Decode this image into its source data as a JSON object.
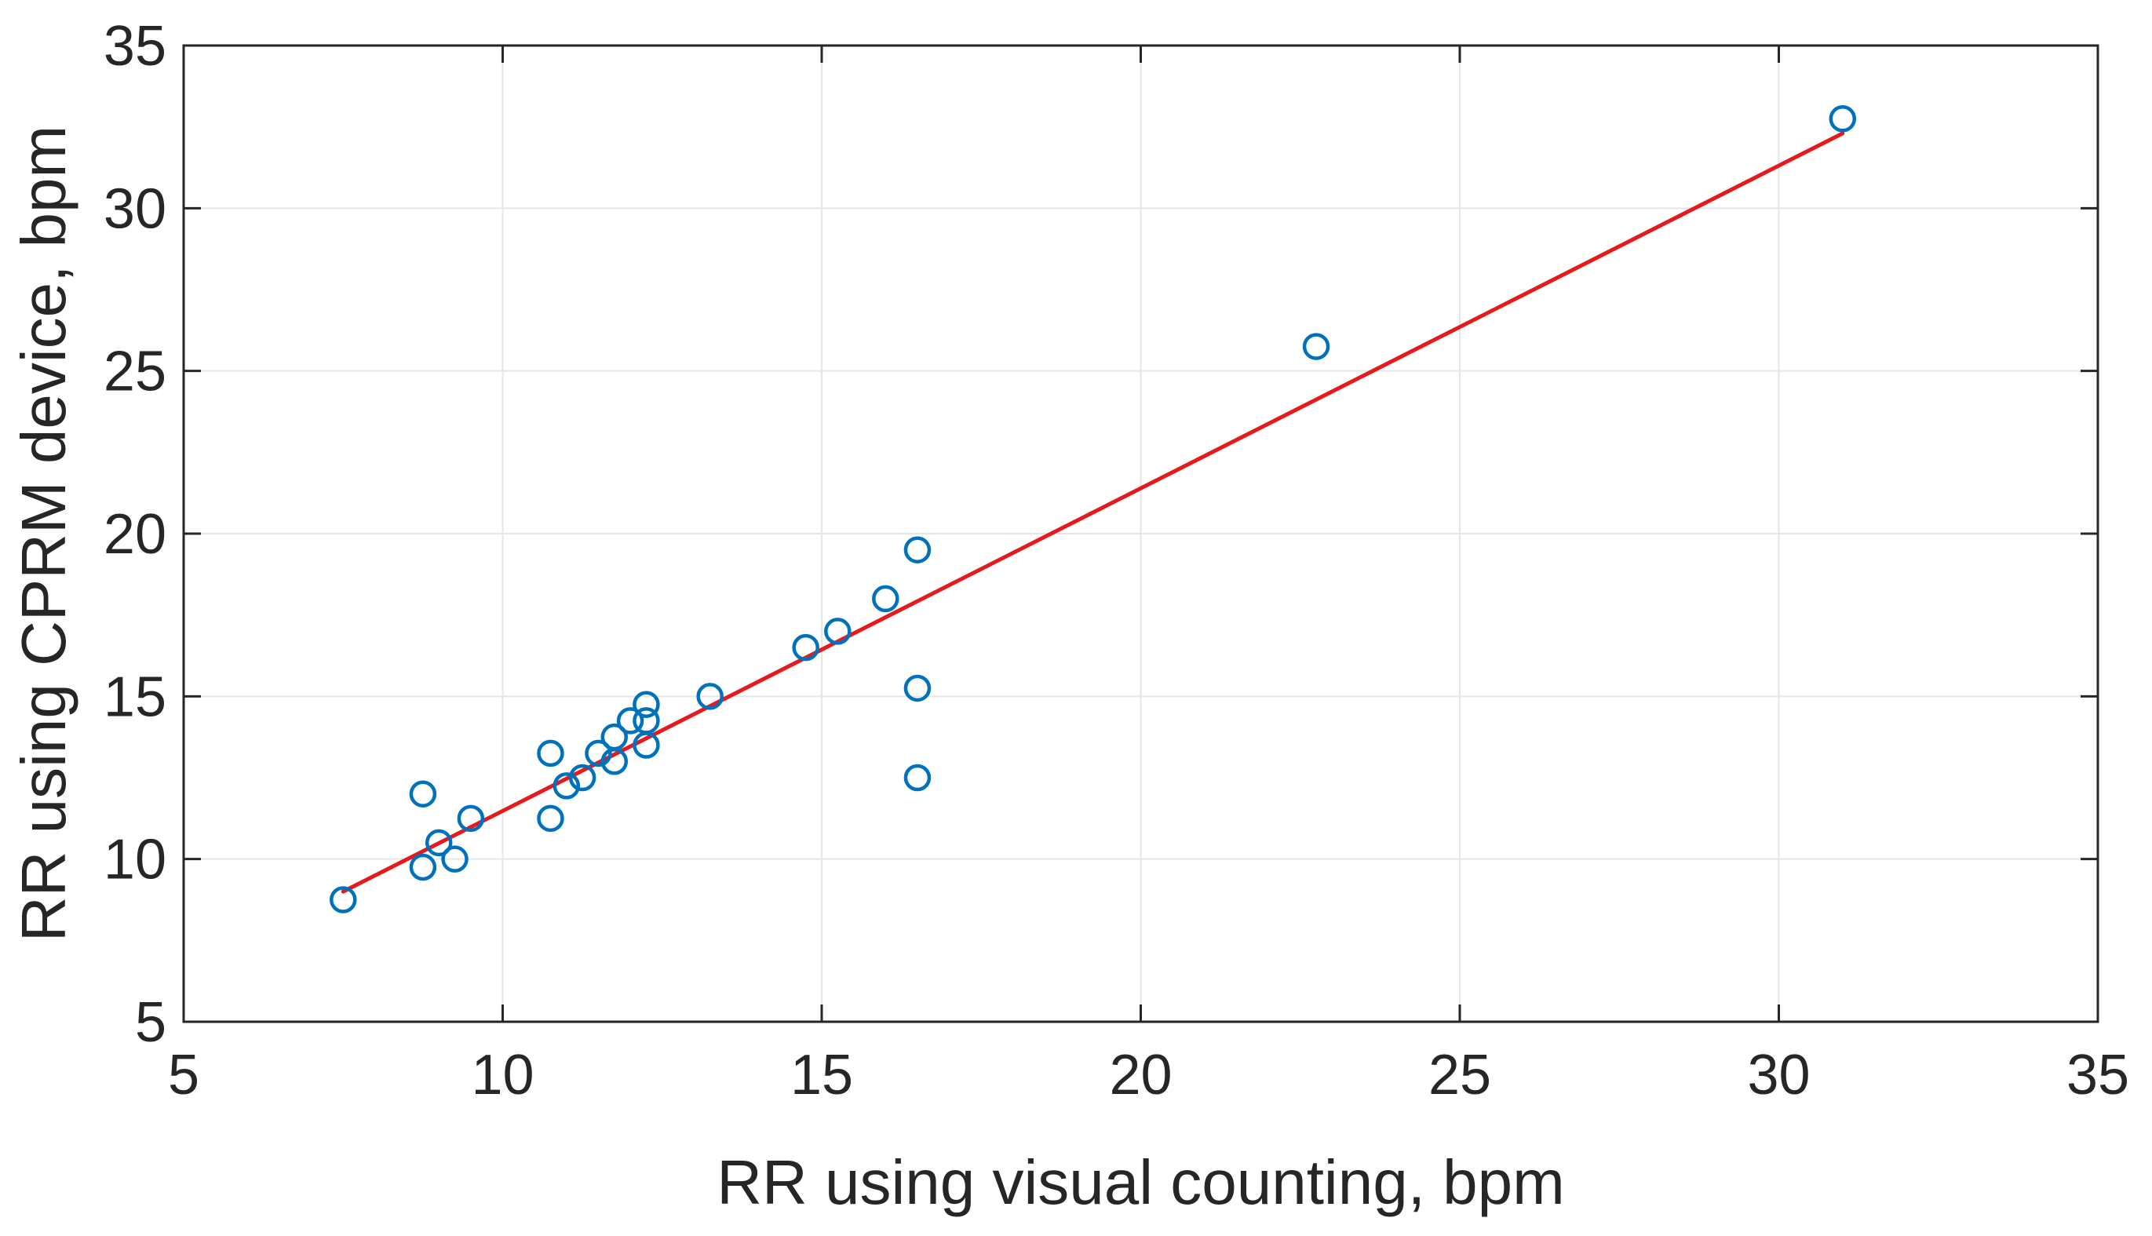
{
  "chart_data": {
    "type": "scatter",
    "title": "",
    "xlabel": "RR using visual counting, bpm",
    "ylabel": "RR using CPRM device, bpm",
    "xlim": [
      5,
      35
    ],
    "ylim": [
      5,
      35
    ],
    "xticks": [
      5,
      10,
      15,
      20,
      25,
      30,
      35
    ],
    "yticks": [
      5,
      10,
      15,
      20,
      25,
      30,
      35
    ],
    "grid": true,
    "series": [
      {
        "type": "scatter",
        "marker": "circle-open",
        "color": "#0072BD",
        "points": [
          {
            "x": 7.5,
            "y": 8.75
          },
          {
            "x": 8.75,
            "y": 9.75
          },
          {
            "x": 8.75,
            "y": 12.0
          },
          {
            "x": 9.0,
            "y": 10.5
          },
          {
            "x": 9.25,
            "y": 10.0
          },
          {
            "x": 9.5,
            "y": 11.25
          },
          {
            "x": 10.75,
            "y": 11.25
          },
          {
            "x": 10.75,
            "y": 13.25
          },
          {
            "x": 11.0,
            "y": 12.25
          },
          {
            "x": 11.25,
            "y": 12.5
          },
          {
            "x": 11.5,
            "y": 13.25
          },
          {
            "x": 11.75,
            "y": 13.0
          },
          {
            "x": 11.75,
            "y": 13.75
          },
          {
            "x": 12.0,
            "y": 14.25
          },
          {
            "x": 12.25,
            "y": 13.5
          },
          {
            "x": 12.25,
            "y": 14.25
          },
          {
            "x": 12.25,
            "y": 14.75
          },
          {
            "x": 13.25,
            "y": 15.0
          },
          {
            "x": 14.75,
            "y": 16.5
          },
          {
            "x": 15.25,
            "y": 17.0
          },
          {
            "x": 16.0,
            "y": 18.0
          },
          {
            "x": 16.5,
            "y": 19.5
          },
          {
            "x": 16.5,
            "y": 15.25
          },
          {
            "x": 16.5,
            "y": 12.5
          },
          {
            "x": 22.75,
            "y": 25.75
          },
          {
            "x": 31.0,
            "y": 32.75
          }
        ]
      },
      {
        "type": "line",
        "color": "#e41a1c",
        "points": [
          {
            "x": 7.5,
            "y": 9.0
          },
          {
            "x": 31.0,
            "y": 32.3
          }
        ]
      }
    ]
  }
}
